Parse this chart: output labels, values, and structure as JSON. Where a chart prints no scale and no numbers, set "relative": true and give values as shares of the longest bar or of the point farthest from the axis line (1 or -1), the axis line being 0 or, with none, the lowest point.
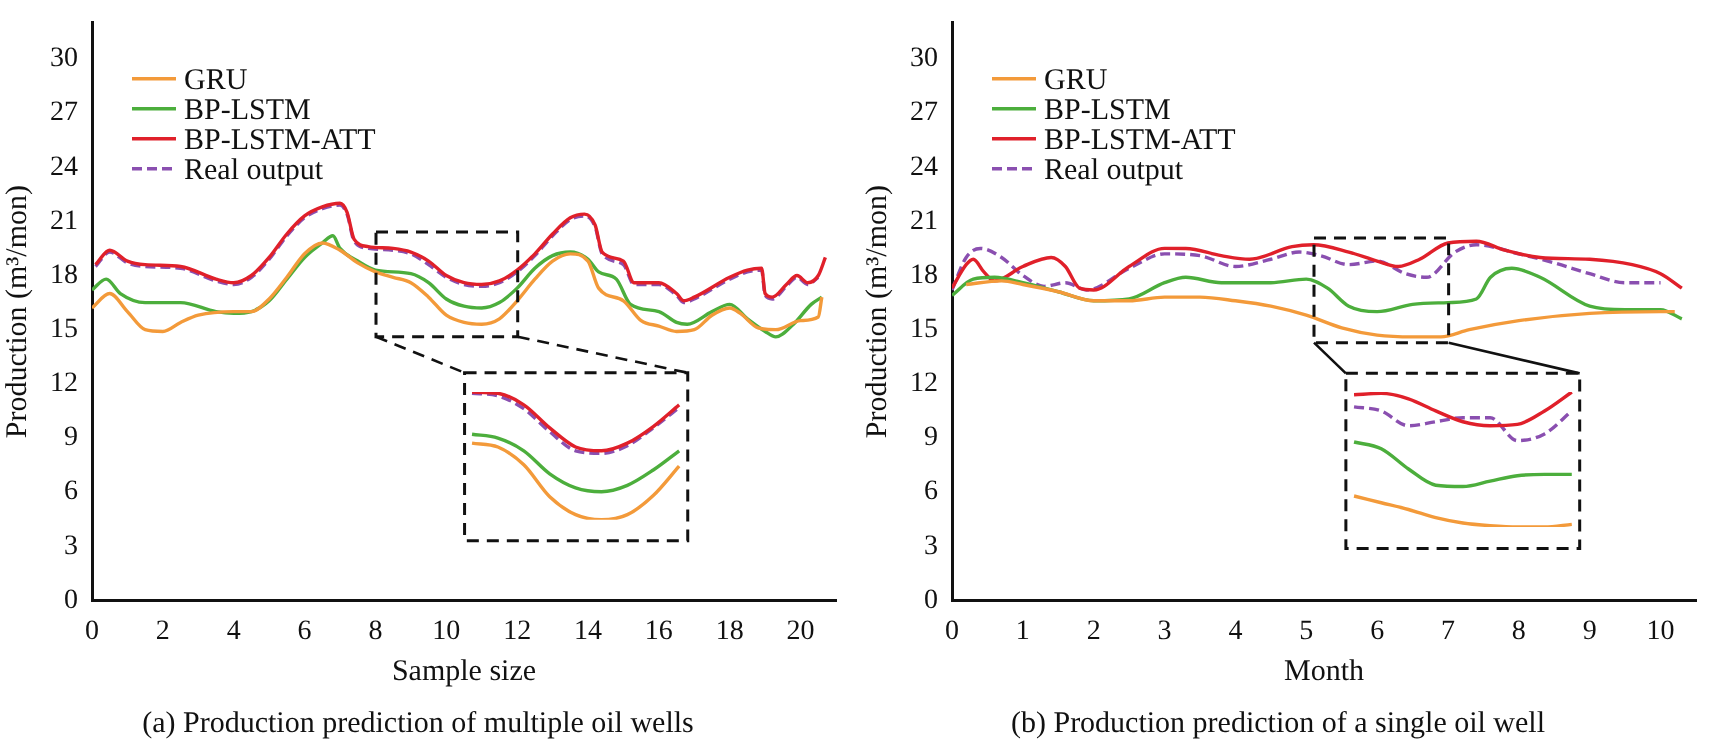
{
  "chart_data": [
    {
      "type": "line",
      "title": "(a) Production prediction of multiple oil wells",
      "xlabel": "Sample size",
      "ylabel": "Production (m³/mon)",
      "xlim": [
        0,
        21
      ],
      "xticks": [
        0,
        2,
        4,
        6,
        8,
        10,
        12,
        14,
        16,
        18,
        20
      ],
      "ylim": [
        0,
        32
      ],
      "yticks": [
        0,
        3,
        6,
        9,
        12,
        15,
        18,
        21,
        24,
        27,
        30
      ],
      "legend": "top left",
      "marker": "none",
      "series": [
        {
          "name": "GRU",
          "color": "#f39a3a",
          "x": [
            0,
            0.5,
            1,
            1.5,
            2,
            2.5,
            3,
            4,
            4.5,
            5,
            5.5,
            6,
            6.5,
            7,
            7.5,
            8,
            8.5,
            9,
            9.5,
            10,
            10.5,
            11,
            11.5,
            12,
            12.5,
            13,
            13.5,
            14,
            14.3,
            15,
            15.5,
            16,
            16.5,
            17,
            17.5,
            18,
            18.3,
            18.8,
            19.3,
            20,
            20.5,
            20.6
          ],
          "values": [
            16.2,
            17.0,
            16.0,
            15.0,
            14.9,
            15.4,
            15.8,
            16.0,
            16.0,
            16.7,
            17.9,
            19.2,
            19.8,
            19.4,
            18.7,
            18.2,
            17.9,
            17.6,
            16.8,
            15.8,
            15.4,
            15.3,
            15.6,
            16.6,
            17.8,
            18.8,
            19.2,
            18.8,
            17.3,
            16.6,
            15.5,
            15.2,
            14.9,
            15.0,
            15.8,
            16.2,
            15.9,
            15.1,
            15.0,
            15.5,
            15.7,
            16.8
          ]
        },
        {
          "name": "BP-LSTM",
          "color": "#4cae3c",
          "x": [
            0,
            0.4,
            0.8,
            1.5,
            2.5,
            3.5,
            4,
            4.5,
            5,
            5.5,
            6,
            6.5,
            6.8,
            7,
            7.5,
            8,
            9,
            9.5,
            10,
            10.5,
            11,
            11.5,
            12,
            12.5,
            13,
            13.5,
            14,
            14.3,
            14.8,
            15.2,
            16,
            16.5,
            16.8,
            17.5,
            18,
            18.5,
            19,
            19.3,
            19.8,
            20.3,
            20.6
          ],
          "values": [
            17.2,
            17.8,
            17.0,
            16.5,
            16.5,
            16.0,
            15.9,
            16.0,
            16.6,
            17.8,
            19.0,
            19.8,
            20.2,
            19.5,
            18.8,
            18.3,
            18.1,
            17.6,
            16.7,
            16.3,
            16.2,
            16.5,
            17.3,
            18.4,
            19.1,
            19.3,
            18.9,
            18.2,
            17.8,
            16.4,
            16.0,
            15.4,
            15.3,
            16.0,
            16.4,
            15.6,
            14.9,
            14.6,
            15.3,
            16.4,
            16.8
          ]
        },
        {
          "name": "BP-LSTM-ATT",
          "color": "#e0202a",
          "x": [
            0.1,
            0.5,
            1,
            1.5,
            2.5,
            3.5,
            4,
            4.5,
            5,
            5.5,
            6,
            6.5,
            7,
            7.2,
            7.4,
            7.8,
            8.5,
            9,
            9.5,
            10,
            10.5,
            11,
            11.5,
            12,
            12.5,
            13,
            13.5,
            13.9,
            14.2,
            14.4,
            15,
            15.3,
            16,
            16.5,
            16.7,
            17,
            18,
            18.5,
            18.9,
            19,
            19.2,
            19.6,
            19.9,
            20.2,
            20.5,
            20.7
          ],
          "values": [
            18.6,
            19.4,
            18.8,
            18.6,
            18.5,
            17.8,
            17.6,
            18.0,
            19.0,
            20.3,
            21.3,
            21.8,
            22.0,
            21.5,
            20.0,
            19.6,
            19.5,
            19.3,
            18.8,
            18.0,
            17.6,
            17.5,
            17.7,
            18.3,
            19.2,
            20.3,
            21.2,
            21.4,
            20.8,
            19.3,
            18.8,
            17.6,
            17.6,
            17.0,
            16.6,
            16.8,
            17.9,
            18.3,
            18.4,
            17.0,
            16.8,
            17.5,
            18.0,
            17.6,
            18.0,
            19.0
          ]
        },
        {
          "name": "Real output",
          "color": "#8a4fb0",
          "line_style": "dashed",
          "x": [
            0.1,
            0.5,
            1,
            1.5,
            2.5,
            3.5,
            4,
            4.5,
            5,
            5.5,
            6,
            6.5,
            7,
            7.2,
            7.4,
            7.8,
            8.5,
            9,
            9.5,
            10,
            10.5,
            11,
            11.5,
            12,
            12.5,
            13,
            13.5,
            13.9,
            14.2,
            14.4,
            15,
            15.3,
            16,
            16.5,
            16.7,
            17,
            18,
            18.5,
            18.9,
            19,
            19.2,
            19.6,
            19.9,
            20.2,
            20.5
          ],
          "values": [
            18.5,
            19.3,
            18.7,
            18.5,
            18.4,
            17.7,
            17.5,
            17.9,
            18.9,
            20.2,
            21.2,
            21.7,
            21.9,
            21.4,
            19.9,
            19.5,
            19.4,
            19.2,
            18.6,
            17.9,
            17.5,
            17.4,
            17.6,
            18.2,
            19.1,
            20.2,
            21.1,
            21.3,
            20.7,
            19.2,
            18.6,
            17.5,
            17.5,
            16.9,
            16.5,
            16.7,
            17.8,
            18.2,
            18.3,
            16.9,
            16.7,
            17.4,
            17.9,
            17.5,
            17.9
          ]
        }
      ]
    },
    {
      "type": "line",
      "relative": true,
      "categories": [
        null,
        null,
        null,
        null,
        null,
        null,
        null,
        null,
        null
      ],
      "series": [
        {
          "color": "#f39a3a",
          "values": [
            0.6,
            0.57,
            0.43,
            0.18,
            0.04,
            0,
            0.04,
            0.19,
            0.42
          ]
        },
        {
          "color": "#4cae3c",
          "values": [
            0.67,
            0.64,
            0.54,
            0.36,
            0.25,
            0.22,
            0.27,
            0.39,
            0.54
          ]
        },
        {
          "color": "#e0202a",
          "values": [
            1,
            0.99,
            0.9,
            0.72,
            0.57,
            0.54,
            0.6,
            0.73,
            0.9
          ]
        },
        {
          "color": "#8a4fb0",
          "line_style": "dashed",
          "values": [
            0.99,
            0.97,
            0.87,
            0.69,
            0.54,
            0.52,
            0.58,
            0.72,
            0.88
          ]
        }
      ]
    },
    {
      "type": "line",
      "title": "(b) Production prediction of a single oil well",
      "xlabel": "Month",
      "ylabel": "Production (m³/mon)",
      "xlim": [
        0,
        10.5
      ],
      "xticks": [
        0,
        1,
        2,
        3,
        4,
        5,
        6,
        7,
        8,
        9,
        10
      ],
      "ylim": [
        0,
        32
      ],
      "yticks": [
        0,
        3,
        6,
        9,
        12,
        15,
        18,
        21,
        24,
        27,
        30
      ],
      "legend": "top left",
      "marker": "none",
      "series": [
        {
          "name": "GRU",
          "color": "#f39a3a",
          "x": [
            0.2,
            0.7,
            1,
            1.5,
            2,
            2.5,
            3,
            3.5,
            4,
            4.5,
            5,
            5.5,
            6,
            6.5,
            6.9,
            7.3,
            8,
            9,
            10,
            10.2
          ],
          "values": [
            17.5,
            17.7,
            17.5,
            17.1,
            16.6,
            16.6,
            16.8,
            16.8,
            16.6,
            16.3,
            15.8,
            15.1,
            14.7,
            14.6,
            14.6,
            15.0,
            15.5,
            15.9,
            16.0,
            16.0
          ]
        },
        {
          "name": "BP-LSTM",
          "color": "#4cae3c",
          "x": [
            0,
            0.3,
            0.6,
            1,
            1.5,
            2,
            2.5,
            3,
            3.3,
            3.8,
            4.5,
            5,
            5.3,
            5.6,
            6,
            6.5,
            7,
            7.4,
            7.6,
            7.9,
            8.3,
            9,
            9.5,
            10,
            10.3
          ],
          "values": [
            16.9,
            17.8,
            17.9,
            17.6,
            17.1,
            16.6,
            16.7,
            17.6,
            17.9,
            17.6,
            17.6,
            17.8,
            17.3,
            16.3,
            16.0,
            16.4,
            16.5,
            16.7,
            17.9,
            18.4,
            17.9,
            16.3,
            16.1,
            16.1,
            15.6
          ]
        },
        {
          "name": "BP-LSTM-ATT",
          "color": "#e0202a",
          "x": [
            0,
            0.2,
            0.3,
            0.45,
            0.6,
            1,
            1.4,
            1.6,
            1.8,
            2,
            2.5,
            3,
            3.3,
            3.8,
            4.2,
            4.8,
            5.1,
            5.6,
            6,
            6.3,
            6.6,
            7,
            7.4,
            7.8,
            8.3,
            9,
            9.6,
            10,
            10.3
          ],
          "values": [
            17.3,
            18.6,
            18.9,
            18.2,
            17.7,
            18.5,
            19.0,
            18.5,
            17.3,
            17.2,
            18.5,
            19.5,
            19.5,
            19.1,
            18.9,
            19.6,
            19.7,
            19.3,
            18.8,
            18.5,
            18.9,
            19.8,
            19.9,
            19.4,
            19.0,
            18.9,
            18.6,
            18.1,
            17.3
          ]
        },
        {
          "name": "Real output",
          "color": "#8a4fb0",
          "line_style": "dashed",
          "x": [
            0,
            0.2,
            0.4,
            0.7,
            1,
            1.3,
            1.6,
            1.9,
            2.5,
            3,
            3.5,
            4,
            4.5,
            4.9,
            5.2,
            5.6,
            6,
            6.4,
            6.7,
            7.1,
            7.4,
            8,
            8.5,
            9,
            9.5,
            10
          ],
          "values": [
            17.2,
            19.0,
            19.5,
            19.0,
            18.0,
            17.4,
            17.6,
            17.2,
            18.4,
            19.2,
            19.1,
            18.5,
            18.9,
            19.3,
            19.1,
            18.6,
            18.8,
            18.1,
            17.9,
            19.3,
            19.7,
            19.2,
            18.7,
            18.1,
            17.6,
            17.6
          ]
        }
      ]
    },
    {
      "type": "line",
      "relative": true,
      "categories": [
        null,
        null,
        null,
        null,
        null,
        null,
        null,
        null,
        null
      ],
      "series": [
        {
          "color": "#f39a3a",
          "values": [
            0.23,
            0.18,
            0.13,
            0.07,
            0.03,
            0.01,
            0,
            0,
            0.02
          ]
        },
        {
          "color": "#4cae3c",
          "values": [
            0.63,
            0.58,
            0.43,
            0.31,
            0.3,
            0.34,
            0.38,
            0.39,
            0.39
          ]
        },
        {
          "color": "#e0202a",
          "values": [
            0.98,
            0.99,
            0.95,
            0.86,
            0.78,
            0.75,
            0.76,
            0.86,
            1
          ]
        },
        {
          "color": "#8a4fb0",
          "line_style": "dashed",
          "values": [
            0.89,
            0.86,
            0.75,
            0.78,
            0.81,
            0.81,
            0.64,
            0.69,
            0.86
          ]
        }
      ]
    }
  ]
}
